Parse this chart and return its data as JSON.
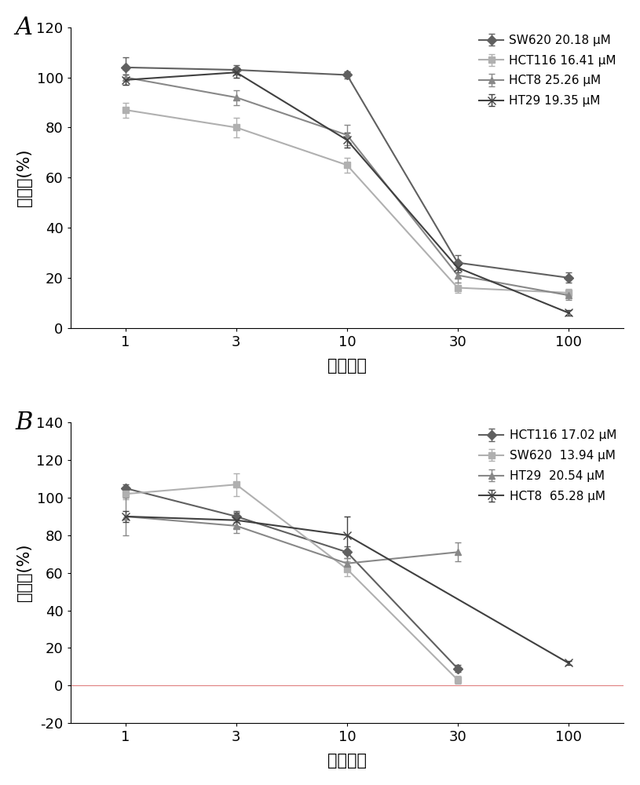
{
  "panel_A": {
    "xlabel": "瑞格替尼",
    "ylabel": "存活率(%)",
    "x": [
      1,
      3,
      10,
      30,
      100
    ],
    "ylim": [
      0,
      120
    ],
    "yticks": [
      0,
      20,
      40,
      60,
      80,
      100,
      120
    ],
    "series": [
      {
        "label": "SW620 20.18 μM",
        "y": [
          104,
          103,
          101,
          26,
          20
        ],
        "yerr": [
          4,
          2,
          1.5,
          3,
          2
        ],
        "color": "#606060",
        "marker": "D",
        "markersize": 6
      },
      {
        "label": "HCT116 16.41 μM",
        "y": [
          87,
          80,
          65,
          16,
          14
        ],
        "yerr": [
          3,
          4,
          3,
          2,
          1.5
        ],
        "color": "#b0b0b0",
        "marker": "s",
        "markersize": 6
      },
      {
        "label": "HCT8 25.26 μM",
        "y": [
          100,
          92,
          77,
          21,
          13
        ],
        "yerr": [
          3,
          3,
          4,
          3,
          2
        ],
        "color": "#888888",
        "marker": "^",
        "markersize": 6
      },
      {
        "label": "HT29 19.35 μM",
        "y": [
          99,
          102,
          75,
          24,
          6
        ],
        "yerr": [
          2,
          2,
          3,
          2,
          1
        ],
        "color": "#404040",
        "marker": "x",
        "markersize": 7
      }
    ]
  },
  "panel_B": {
    "xlabel": "拉帕替尼",
    "ylabel": "存活率(%)",
    "x": [
      1,
      3,
      10,
      30,
      100
    ],
    "ylim": [
      -20,
      140
    ],
    "yticks": [
      -20,
      0,
      20,
      40,
      60,
      80,
      100,
      120,
      140
    ],
    "series": [
      {
        "label": "HCT116 17.02 μM",
        "y": [
          105,
          90,
          71,
          9,
          null
        ],
        "yerr": [
          2,
          3,
          3,
          2,
          null
        ],
        "color": "#606060",
        "marker": "D",
        "markersize": 6
      },
      {
        "label": "SW620  13.94 μM",
        "y": [
          102,
          107,
          62,
          3,
          null
        ],
        "yerr": [
          3,
          6,
          4,
          2,
          null
        ],
        "color": "#b0b0b0",
        "marker": "s",
        "markersize": 6
      },
      {
        "label": "HT29  20.54 μM",
        "y": [
          90,
          85,
          65,
          71,
          null
        ],
        "yerr": [
          10,
          4,
          3,
          5,
          null
        ],
        "color": "#888888",
        "marker": "^",
        "markersize": 6
      },
      {
        "label": "HCT8  65.28 μM",
        "y": [
          90,
          88,
          80,
          null,
          12
        ],
        "yerr": [
          3,
          4,
          10,
          null,
          1
        ],
        "color": "#404040",
        "marker": "x",
        "markersize": 7
      }
    ]
  }
}
